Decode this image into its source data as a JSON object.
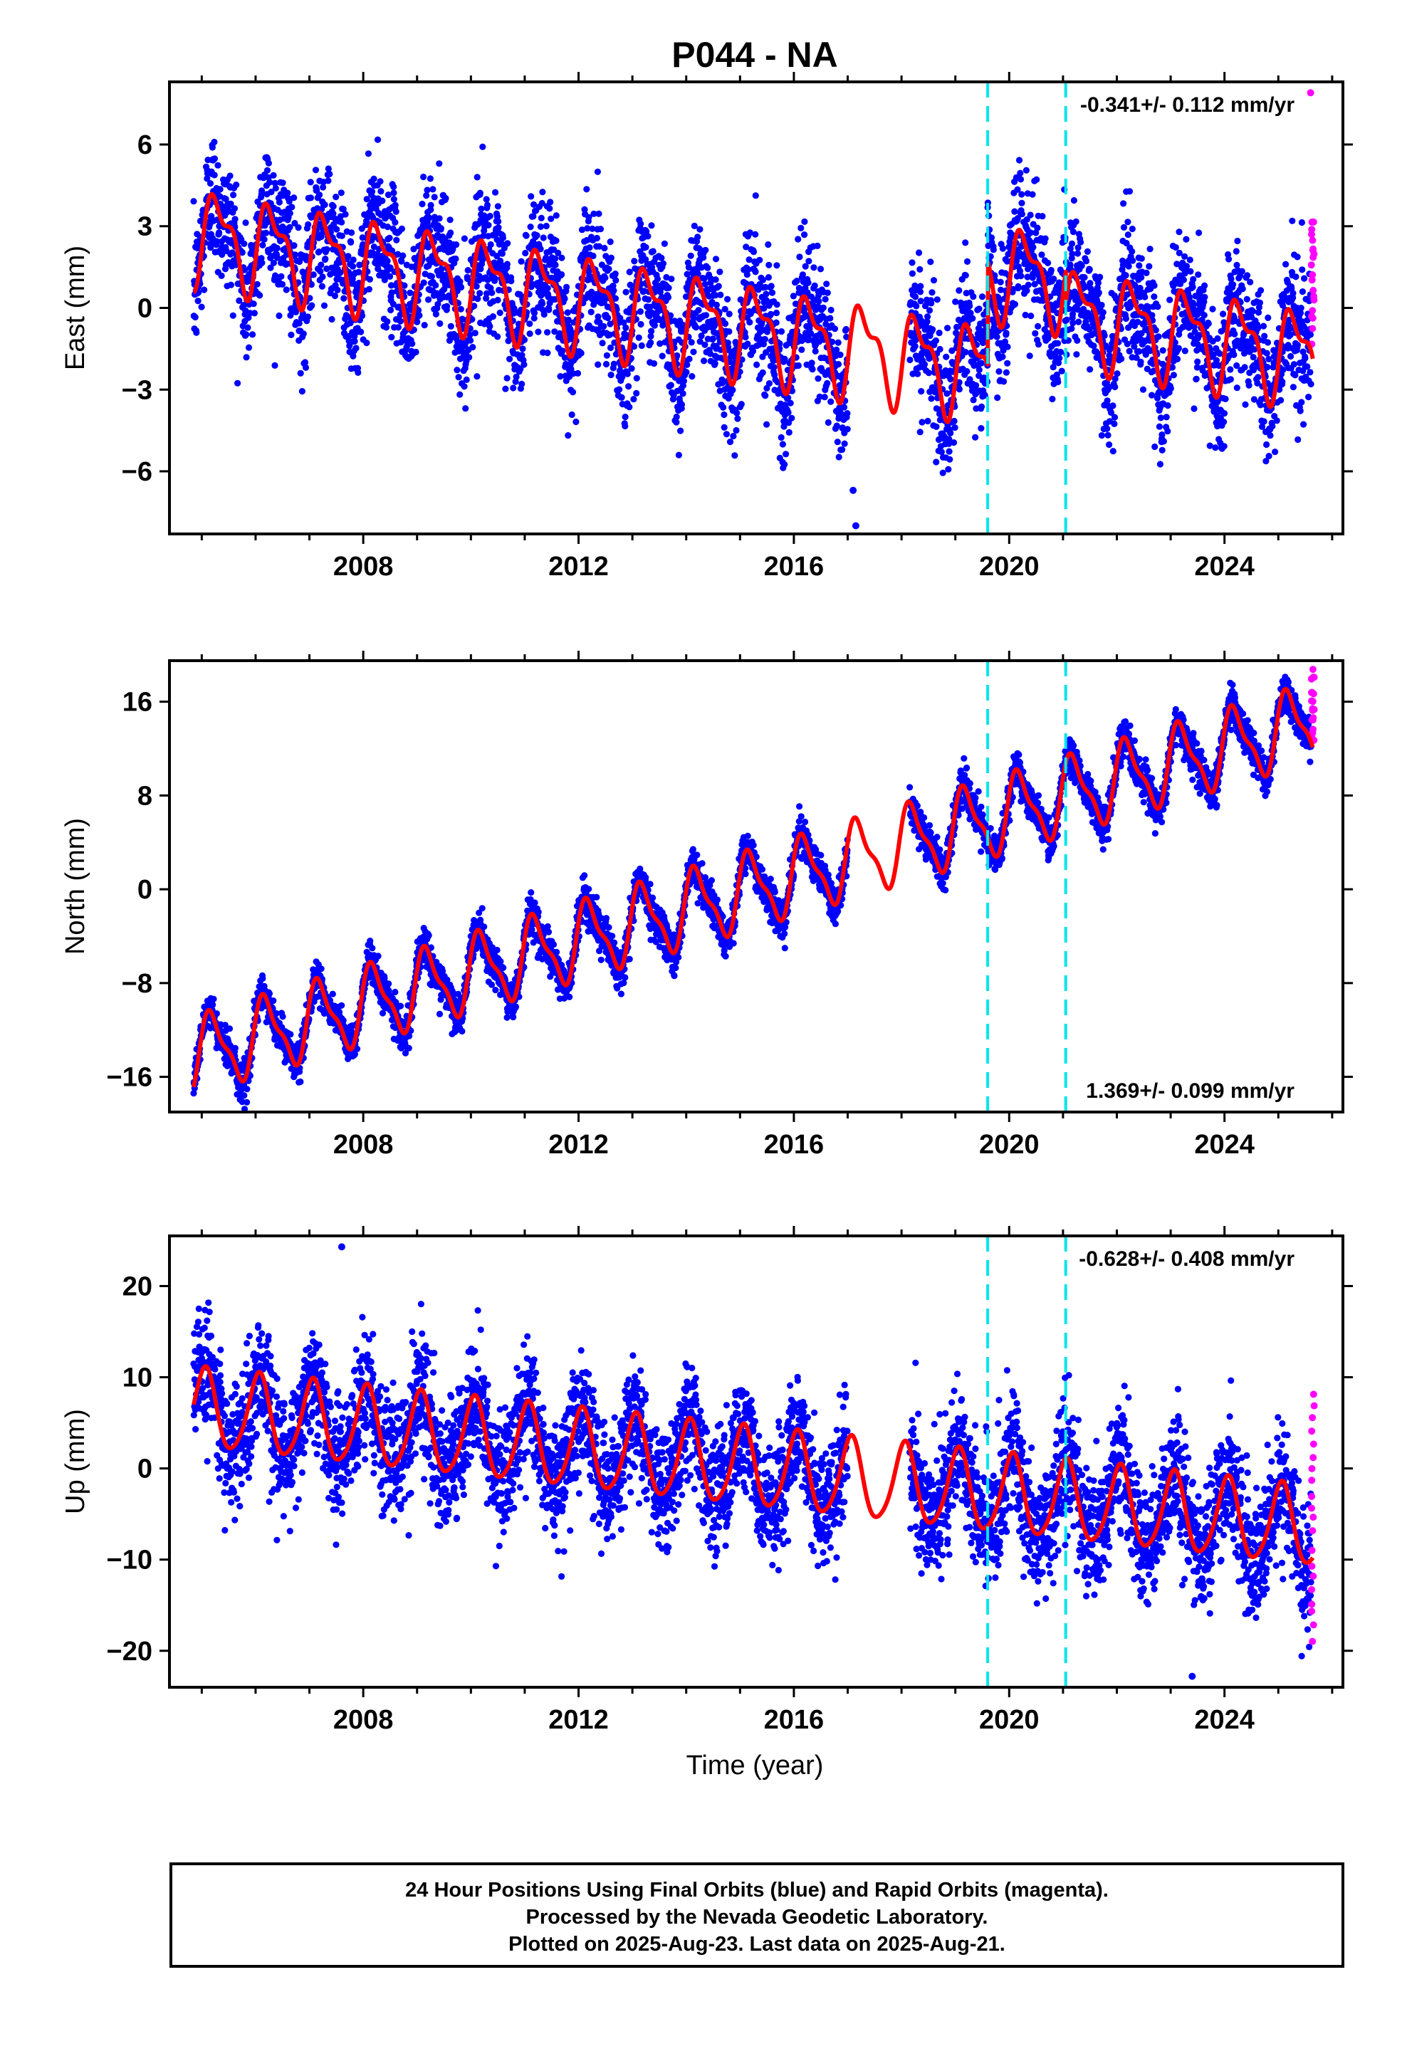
{
  "chart_data": {
    "type": "scatter",
    "title": "P044 - NA",
    "xlabel": "Time (year)",
    "x_ticks": [
      2008,
      2012,
      2016,
      2020,
      2024
    ],
    "xlim": [
      2004.4,
      2026.2
    ],
    "data_span": [
      2004.85,
      2025.64
    ],
    "event_lines": [
      2019.6,
      2021.05
    ],
    "colors": {
      "final_orbits": "#0000ff",
      "rapid_orbits": "#ff00ff",
      "model": "#ff0000",
      "events": "#00e5ee"
    },
    "panels": [
      {
        "key": "east",
        "ylabel": "East (mm)",
        "ylim": [
          -8.3,
          8.3
        ],
        "y_ticks": [
          6,
          3,
          0,
          -3,
          -6
        ],
        "rate_text": "-0.341+/- 0.112 mm/yr",
        "rate_position": "top-right",
        "rate_value": -0.341,
        "annual_amplitude": 1.5,
        "semiannual_amplitude": 0.7,
        "annual_phase": -0.35,
        "semiannual_phase": 0.0,
        "noise_std": 1.2,
        "offsets": [
          {
            "at": 2019.6,
            "value": 3.8
          },
          {
            "at": 2021.05,
            "value": -1.2
          }
        ],
        "rapid_range": [
          -1.0,
          3.5
        ],
        "outliers": [
          {
            "x": 2017.1,
            "y": -6.7
          },
          {
            "x": 2017.15,
            "y": -8.0
          },
          {
            "x": 2025.6,
            "y": 7.9
          }
        ]
      },
      {
        "key": "north",
        "ylabel": "North (mm)",
        "ylim": [
          -19,
          19.5
        ],
        "y_ticks": [
          16,
          8,
          0,
          -8,
          -16
        ],
        "rate_text": "1.369+/- 0.099 mm/yr",
        "rate_position": "bottom-right",
        "rate_value": 1.369,
        "annual_amplitude": 3.0,
        "semiannual_amplitude": 1.0,
        "annual_phase": 0.35,
        "semiannual_phase": 0.6,
        "noise_std": 0.8,
        "offsets": [],
        "rapid_range": [
          12.5,
          18.5
        ],
        "outliers": []
      },
      {
        "key": "up",
        "ylabel": "Up (mm)",
        "ylim": [
          -24,
          25.5
        ],
        "y_ticks": [
          20,
          10,
          0,
          -10,
          -20
        ],
        "rate_text": "-0.628+/- 0.408 mm/yr",
        "rate_position": "top-right",
        "rate_value": -0.628,
        "annual_amplitude": 4.3,
        "semiannual_amplitude": 0.6,
        "annual_phase": 1.2,
        "semiannual_phase": 0.3,
        "noise_std": 3.3,
        "offsets": [],
        "rapid_range": [
          -19.0,
          8.5
        ],
        "outliers": [
          {
            "x": 2007.6,
            "y": 24.3
          },
          {
            "x": 2023.4,
            "y": -22.8
          }
        ]
      }
    ]
  },
  "footer": {
    "line1": "24 Hour Positions Using Final Orbits (blue) and Rapid Orbits (magenta).",
    "line2": "Processed by the Nevada Geodetic Laboratory.",
    "line3": "Plotted on 2025-Aug-23. Last data on 2025-Aug-21."
  }
}
